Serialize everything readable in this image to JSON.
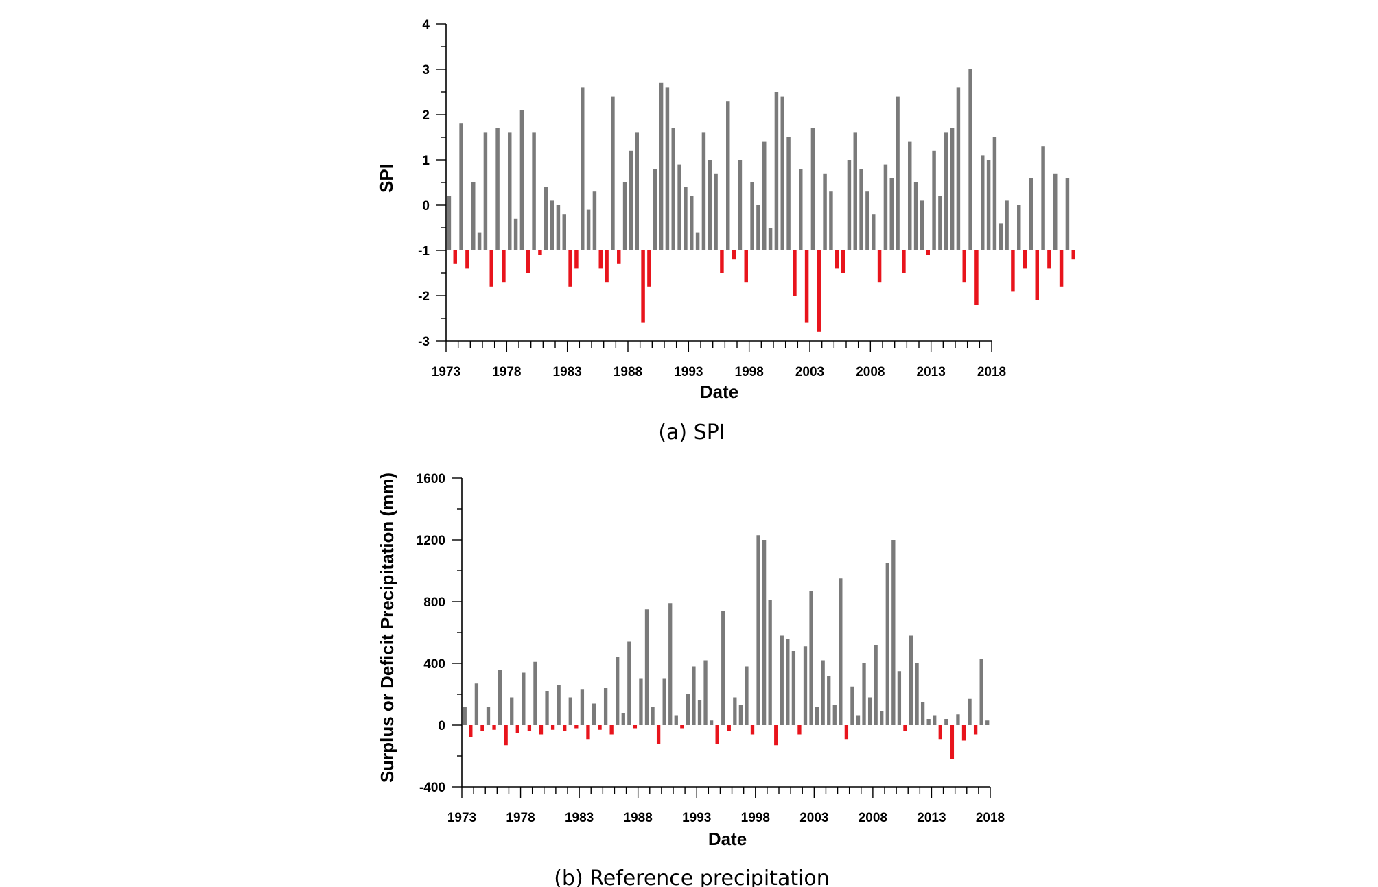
{
  "colors": {
    "surplus": "#7a7a7a",
    "deficit": "#e8141c",
    "axis": "#000000"
  },
  "chart_data": [
    {
      "type": "bar",
      "caption": "(a) SPI",
      "ylabel": "SPI",
      "xlabel": "Date",
      "ylim": [
        -3,
        4
      ],
      "yticks": [
        -3,
        -2,
        -1,
        0,
        1,
        2,
        3,
        4
      ],
      "xlim": [
        1973,
        2018
      ],
      "xticks": [
        "1973",
        "1978",
        "1983",
        "1988",
        "1993",
        "1998",
        "2003",
        "2008",
        "2013",
        "2018"
      ],
      "baseline": -1,
      "series": [
        {
          "x_start": 1973.0,
          "x_step": 0.5,
          "values": [
            0.2,
            -1.3,
            1.8,
            -1.4,
            0.5,
            -0.6,
            1.6,
            -1.8,
            1.7,
            -1.7,
            1.6,
            -0.3,
            2.1,
            -1.5,
            1.6,
            -1.1,
            0.4,
            0.1,
            0.0,
            -0.2,
            -1.8,
            -1.4,
            2.6,
            -0.1,
            0.3,
            -1.4,
            -1.7,
            2.4,
            -1.3,
            0.5,
            1.2,
            1.6,
            -2.6,
            -1.8,
            0.8,
            2.7,
            2.6,
            1.7,
            0.9,
            0.4,
            0.2,
            -0.6,
            1.6,
            1.0,
            0.7,
            -1.5,
            2.3,
            -1.2,
            1.0,
            -1.7,
            0.5,
            0.0,
            1.4,
            -0.5,
            2.5,
            2.4,
            1.5,
            -2.0,
            0.8,
            -2.6,
            1.7,
            -2.8,
            0.7,
            0.3,
            -1.4,
            -1.5,
            1.0,
            1.6,
            0.8,
            0.3,
            -0.2,
            -1.7,
            0.9,
            0.6,
            2.4,
            -1.5,
            1.4,
            0.5,
            0.1,
            -1.1,
            1.2,
            0.2,
            1.6,
            1.7,
            2.6,
            -1.7,
            3.0,
            -2.2,
            1.1,
            1.0,
            1.5,
            -0.4,
            0.1,
            -1.9,
            0.0,
            -1.4,
            0.6,
            -2.1,
            1.3,
            -1.4,
            0.7,
            -1.8,
            0.6,
            -1.2
          ]
        }
      ]
    },
    {
      "type": "bar",
      "caption": "(b) Reference precipitation",
      "ylabel": "Surplus or Deficit Precipitation (mm)",
      "xlabel": "Date",
      "ylim": [
        -400,
        1600
      ],
      "yticks": [
        -400,
        0,
        400,
        800,
        1200,
        1600
      ],
      "xlim": [
        1973,
        2018
      ],
      "xticks": [
        "1973",
        "1978",
        "1983",
        "1988",
        "1993",
        "1998",
        "2003",
        "2008",
        "2013",
        "2018"
      ],
      "baseline": 0,
      "series": [
        {
          "x_start": 1973.0,
          "x_step": 0.5,
          "values": [
            120,
            -80,
            270,
            -40,
            120,
            -30,
            360,
            -130,
            180,
            -50,
            340,
            -40,
            410,
            -60,
            220,
            -30,
            260,
            -40,
            180,
            -20,
            230,
            -90,
            140,
            -30,
            240,
            -60,
            440,
            80,
            540,
            -20,
            300,
            750,
            120,
            -120,
            300,
            790,
            60,
            -20,
            200,
            380,
            160,
            420,
            30,
            -120,
            740,
            -40,
            180,
            130,
            380,
            -60,
            1230,
            1200,
            810,
            -130,
            580,
            560,
            480,
            -60,
            510,
            870,
            120,
            420,
            320,
            130,
            950,
            -90,
            250,
            60,
            400,
            180,
            520,
            90,
            1050,
            1200,
            350,
            -40,
            580,
            400,
            150,
            40,
            60,
            -90,
            40,
            -220,
            70,
            -100,
            170,
            -60,
            430,
            30
          ]
        }
      ]
    }
  ]
}
